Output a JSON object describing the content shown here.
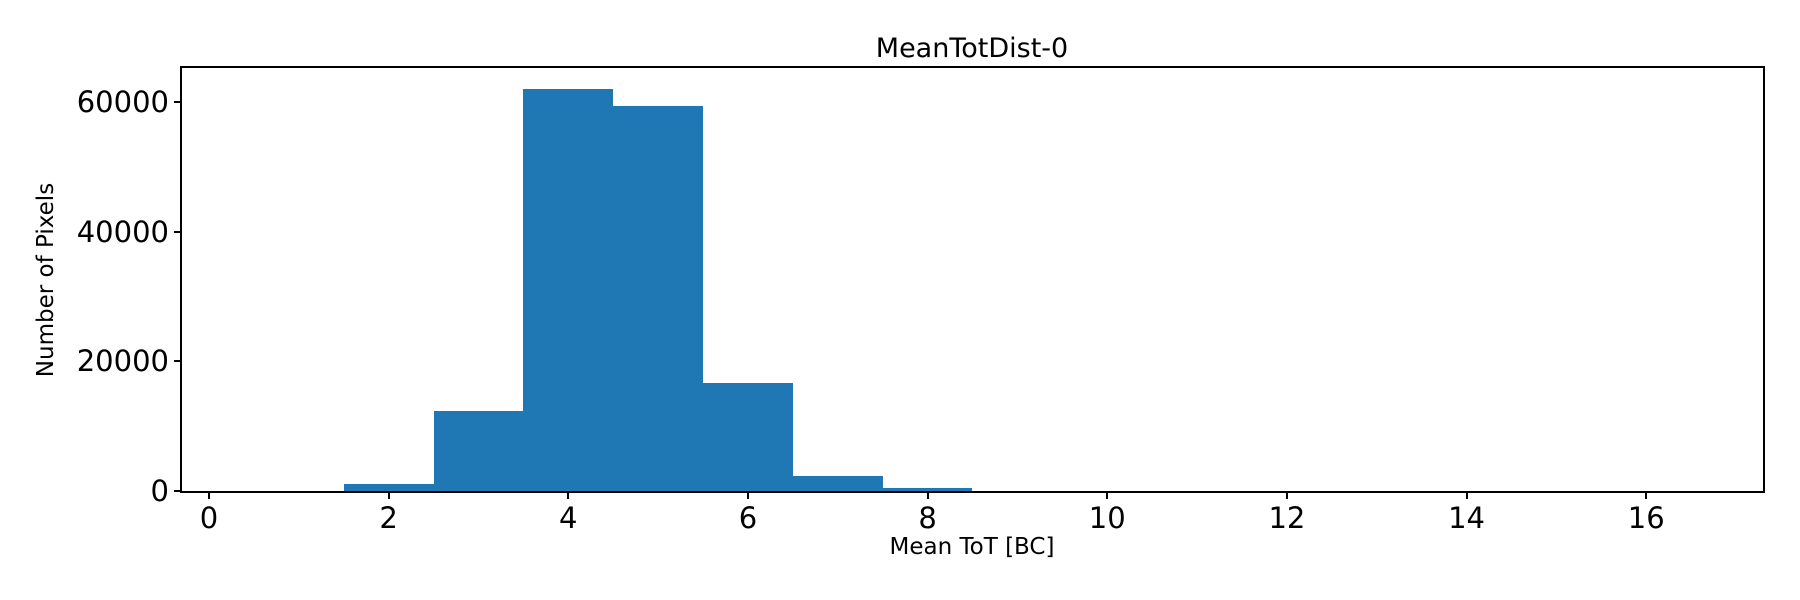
{
  "chart_data": {
    "type": "bar",
    "subtype": "histogram",
    "title": "MeanTotDist-0",
    "xlabel": "Mean ToT [BC]",
    "ylabel": "Number of Pixels",
    "bar_color": "#1f77b4",
    "xlim": [
      -0.3,
      17.3
    ],
    "ylim": [
      0,
      65300
    ],
    "x_ticks": [
      0,
      2,
      4,
      6,
      8,
      10,
      12,
      14,
      16
    ],
    "y_ticks": [
      0,
      20000,
      40000,
      60000
    ],
    "grid": false,
    "legend": false,
    "bin_width": 1,
    "bins": [
      {
        "center": 2,
        "count": 1100
      },
      {
        "center": 3,
        "count": 12300
      },
      {
        "center": 4,
        "count": 62100
      },
      {
        "center": 5,
        "count": 59400
      },
      {
        "center": 6,
        "count": 16700
      },
      {
        "center": 7,
        "count": 2300
      },
      {
        "center": 8,
        "count": 460
      }
    ]
  }
}
